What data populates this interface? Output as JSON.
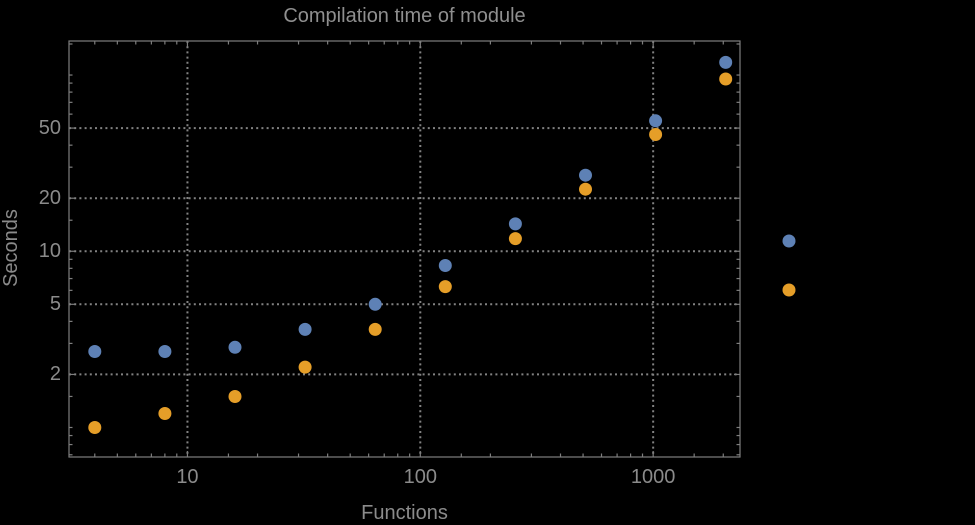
{
  "window": {
    "background": "#000000"
  },
  "chart_data": {
    "type": "scatter",
    "title": "Compilation time of module",
    "xlabel": "Functions",
    "ylabel": "Seconds",
    "x_scale": "log",
    "y_scale": "log",
    "xlim": [
      3.1,
      2360
    ],
    "ylim": [
      0.68,
      156
    ],
    "grid": {
      "style": "dotted",
      "at": "major-ticks",
      "on": true
    },
    "x_major_ticks": [
      10,
      100,
      1000
    ],
    "x_major_tick_labels": [
      "10",
      "100",
      "1000"
    ],
    "x_minor_ticks": [
      4,
      5,
      6,
      7,
      8,
      9,
      15,
      20,
      30,
      40,
      50,
      60,
      70,
      80,
      90,
      150,
      200,
      300,
      400,
      500,
      600,
      700,
      800,
      900,
      1500,
      2000
    ],
    "y_major_ticks": [
      2,
      5,
      10,
      20,
      50
    ],
    "y_major_tick_labels": [
      "2",
      "5",
      "10",
      "20",
      "50"
    ],
    "y_minor_ticks": [
      0.7,
      0.8,
      0.9,
      1,
      1.5,
      3,
      4,
      6,
      7,
      8,
      9,
      15,
      30,
      40,
      60,
      70,
      80,
      90,
      100,
      150
    ],
    "series": [
      {
        "name": "series-blue",
        "color": "#5e81b5",
        "x": [
          4,
          8,
          16,
          32,
          64,
          128,
          256,
          512,
          1024,
          2048
        ],
        "y": [
          2.7,
          2.7,
          2.85,
          3.6,
          5.0,
          8.3,
          14.3,
          27,
          55,
          118
        ]
      },
      {
        "name": "series-orange",
        "color": "#e59e28",
        "x": [
          4,
          8,
          16,
          32,
          64,
          128,
          256,
          512,
          1024,
          2048
        ],
        "y": [
          1.0,
          1.2,
          1.5,
          2.2,
          3.6,
          6.3,
          11.8,
          22.5,
          46,
          95
        ]
      }
    ],
    "legend": {
      "position": "outside-right",
      "entries": [
        {
          "marker_color": "#5e81b5"
        },
        {
          "marker_color": "#e59e28"
        }
      ]
    }
  },
  "colors": {
    "background": "#000000",
    "title_text": "#8f8f8f",
    "axis_label_text": "#8b8b8b",
    "tick_label_text": "#8b8b8b",
    "frame": "#7e7e7e",
    "gridline": "#828282",
    "point_blue": "#5e81b5",
    "point_orange": "#e59e28"
  }
}
